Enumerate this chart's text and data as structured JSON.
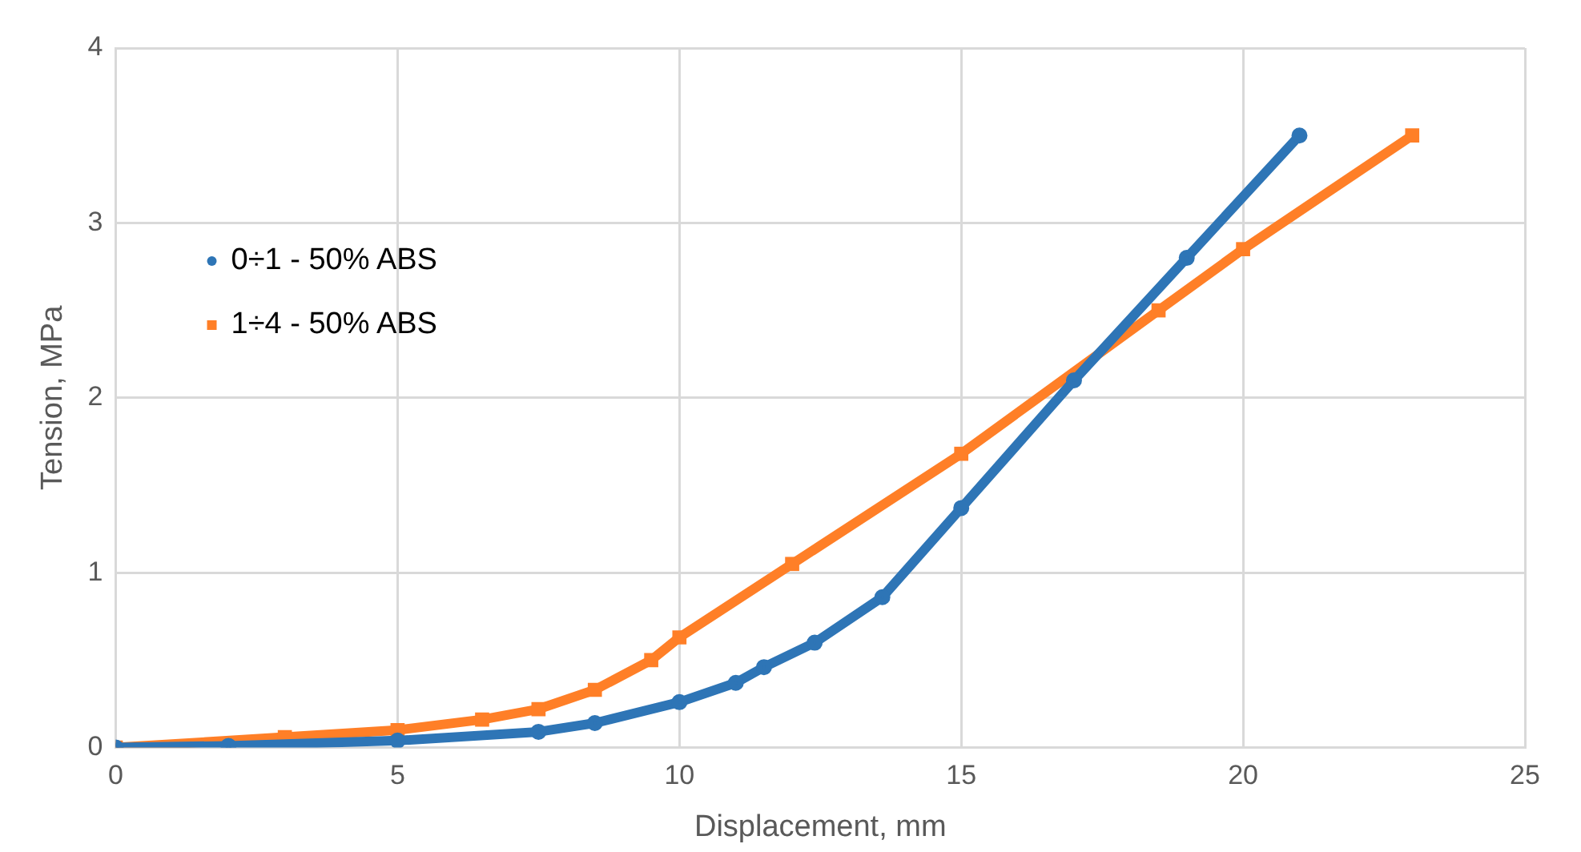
{
  "chart_data": {
    "type": "line",
    "xlabel": "Displacement, mm",
    "ylabel": "Tension, MPa",
    "xlim": [
      0,
      25
    ],
    "xticks": [
      0,
      5,
      10,
      15,
      20,
      25
    ],
    "ylim": [
      0,
      4
    ],
    "yticks": [
      0,
      1,
      2,
      3,
      4
    ],
    "grid": true,
    "legend": "left",
    "series": [
      {
        "name": "0÷1 - 50% ABS",
        "color": "#2e75b6",
        "marker": "circle",
        "x": [
          0,
          2,
          5,
          7.5,
          8.5,
          10,
          11,
          11.5,
          12.4,
          13.6,
          15,
          17,
          19,
          21
        ],
        "values": [
          0,
          0.01,
          0.04,
          0.09,
          0.14,
          0.26,
          0.37,
          0.46,
          0.6,
          0.86,
          1.37,
          2.1,
          2.8,
          3.5
        ]
      },
      {
        "name": "1÷4 - 50% ABS",
        "color": "#ff7f27",
        "marker": "square",
        "x": [
          0,
          3,
          5,
          6.5,
          7.5,
          8.5,
          9.5,
          10,
          12,
          15,
          18.5,
          20,
          23
        ],
        "values": [
          0,
          0.06,
          0.1,
          0.16,
          0.22,
          0.33,
          0.5,
          0.63,
          1.05,
          1.68,
          2.5,
          2.85,
          3.5
        ]
      }
    ]
  }
}
